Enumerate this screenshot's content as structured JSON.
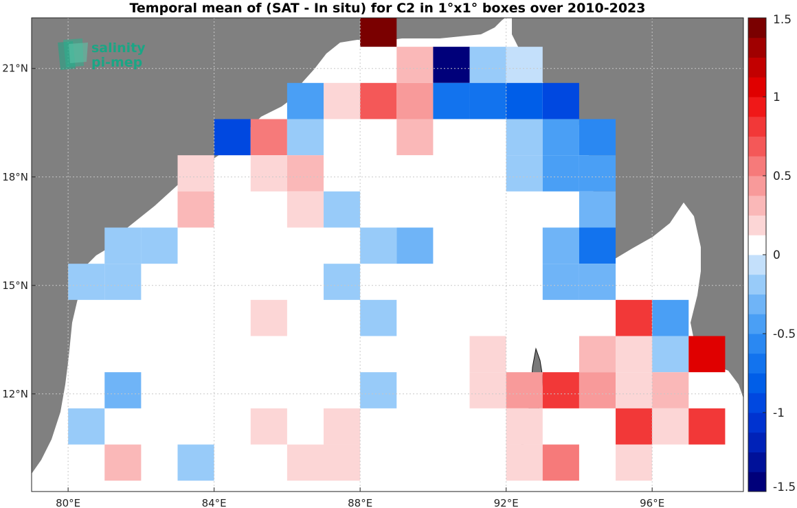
{
  "title": "Temporal mean of (SAT - In situ) for C2 in 1°x1° boxes over 2010-2023",
  "logo": {
    "line1": "salinity",
    "line2": "pi-mep"
  },
  "map": {
    "lon_range": [
      79,
      98.5
    ],
    "lat_range": [
      9.3,
      22.4
    ],
    "lon_ticks": [
      {
        "value": 80,
        "label": "80°E"
      },
      {
        "value": 84,
        "label": "84°E"
      },
      {
        "value": 88,
        "label": "88°E"
      },
      {
        "value": 92,
        "label": "92°E"
      },
      {
        "value": 96,
        "label": "96°E"
      }
    ],
    "lat_ticks": [
      {
        "value": 12,
        "label": "12°N"
      },
      {
        "value": 15,
        "label": "15°N"
      },
      {
        "value": 18,
        "label": "18°N"
      },
      {
        "value": 21,
        "label": "21°N"
      }
    ],
    "colors": {
      "land": "#808080",
      "ocean": "#ffffff",
      "grid": "#c8c8c8"
    }
  },
  "chart_data": {
    "type": "heatmap",
    "title": "Temporal mean of (SAT - In situ) for C2 in 1°x1° boxes over 2010-2023",
    "cell_size_deg": 1,
    "note": "cells list [lon_west, lat_south, value]",
    "cells": [
      [
        88,
        21.6,
        1.4
      ],
      [
        89,
        20.6,
        0.35
      ],
      [
        90,
        20.6,
        -1.5
      ],
      [
        91,
        20.6,
        -0.25
      ],
      [
        92,
        20.6,
        -0.1
      ],
      [
        86,
        19.6,
        -0.4
      ],
      [
        87,
        19.6,
        0.15
      ],
      [
        88,
        19.6,
        0.65
      ],
      [
        89,
        19.6,
        0.4
      ],
      [
        90,
        19.6,
        -0.7
      ],
      [
        91,
        19.6,
        -0.7
      ],
      [
        92,
        19.6,
        -0.8
      ],
      [
        93,
        19.6,
        -0.9
      ],
      [
        84,
        18.6,
        -0.95
      ],
      [
        85,
        18.6,
        0.5
      ],
      [
        86,
        18.6,
        -0.15
      ],
      [
        89,
        18.6,
        0.3
      ],
      [
        92,
        18.6,
        -0.15
      ],
      [
        93,
        18.6,
        -0.5
      ],
      [
        94,
        18.6,
        -0.6
      ],
      [
        83,
        17.6,
        0.15
      ],
      [
        85,
        17.6,
        0.15
      ],
      [
        86,
        17.6,
        0.25
      ],
      [
        89,
        17.6,
        0.1
      ],
      [
        92,
        17.6,
        -0.15
      ],
      [
        93,
        17.6,
        -0.4
      ],
      [
        94,
        17.6,
        -0.45
      ],
      [
        83,
        16.6,
        0.3
      ],
      [
        86,
        16.6,
        0.15
      ],
      [
        87,
        16.6,
        -0.15
      ],
      [
        94,
        16.6,
        -0.3
      ],
      [
        81,
        15.6,
        -0.15
      ],
      [
        82,
        15.6,
        -0.15
      ],
      [
        88,
        15.6,
        -0.15
      ],
      [
        89,
        15.6,
        -0.3
      ],
      [
        93,
        15.6,
        -0.35
      ],
      [
        94,
        15.6,
        -0.75
      ],
      [
        80,
        14.6,
        -0.15
      ],
      [
        81,
        14.6,
        -0.25
      ],
      [
        87,
        14.6,
        -0.15
      ],
      [
        93,
        14.6,
        -0.35
      ],
      [
        94,
        14.6,
        -0.35
      ],
      [
        85,
        13.6,
        0.15
      ],
      [
        88,
        13.6,
        -0.15
      ],
      [
        95,
        13.6,
        0.8
      ],
      [
        96,
        13.6,
        -0.4
      ],
      [
        91,
        12.6,
        0.15
      ],
      [
        94,
        12.6,
        0.3
      ],
      [
        95,
        12.6,
        0.15
      ],
      [
        96,
        12.6,
        -0.25
      ],
      [
        97,
        12.6,
        1.05
      ],
      [
        81,
        11.6,
        -0.3
      ],
      [
        88,
        11.6,
        -0.15
      ],
      [
        91,
        11.6,
        0.15
      ],
      [
        92,
        11.6,
        0.45
      ],
      [
        93,
        11.6,
        0.85
      ],
      [
        94,
        11.6,
        0.45
      ],
      [
        95,
        11.6,
        0.15
      ],
      [
        96,
        11.6,
        0.3
      ],
      [
        80,
        10.6,
        -0.15
      ],
      [
        85,
        10.6,
        0.15
      ],
      [
        87,
        10.6,
        0.15
      ],
      [
        92,
        10.6,
        0.15
      ],
      [
        95,
        10.6,
        0.85
      ],
      [
        96,
        10.6,
        0.15
      ],
      [
        97,
        10.6,
        0.8
      ],
      [
        81,
        9.6,
        0.3
      ],
      [
        83,
        9.6,
        -0.15
      ],
      [
        86,
        9.6,
        0.15
      ],
      [
        87,
        9.6,
        0.15
      ],
      [
        92,
        9.6,
        0.15
      ],
      [
        93,
        9.6,
        0.6
      ],
      [
        95,
        9.6,
        0.15
      ]
    ],
    "colorbar": {
      "range": [
        -1.5,
        1.5
      ],
      "steps": 24,
      "ticks": [
        {
          "value": 1.5,
          "label": "1.5"
        },
        {
          "value": 1,
          "label": "1"
        },
        {
          "value": 0.5,
          "label": "0.5"
        },
        {
          "value": 0,
          "label": "0"
        },
        {
          "value": -0.5,
          "label": "-0.5"
        },
        {
          "value": -1,
          "label": "-1"
        },
        {
          "value": -1.5,
          "label": "-1.5"
        }
      ],
      "colors_low_to_high": [
        "#00007a",
        "#001199",
        "#0022b8",
        "#0033d0",
        "#0048e0",
        "#005ee8",
        "#1273ee",
        "#2a88f2",
        "#4a9ff5",
        "#6fb4f7",
        "#98cbf9",
        "#c4e0fb",
        "#ffffff",
        "#fcd6d6",
        "#fab8b8",
        "#f89a9a",
        "#f67a7a",
        "#f45858",
        "#f23838",
        "#f01818",
        "#e00000",
        "#c20000",
        "#a00000",
        "#7a0000"
      ]
    }
  }
}
